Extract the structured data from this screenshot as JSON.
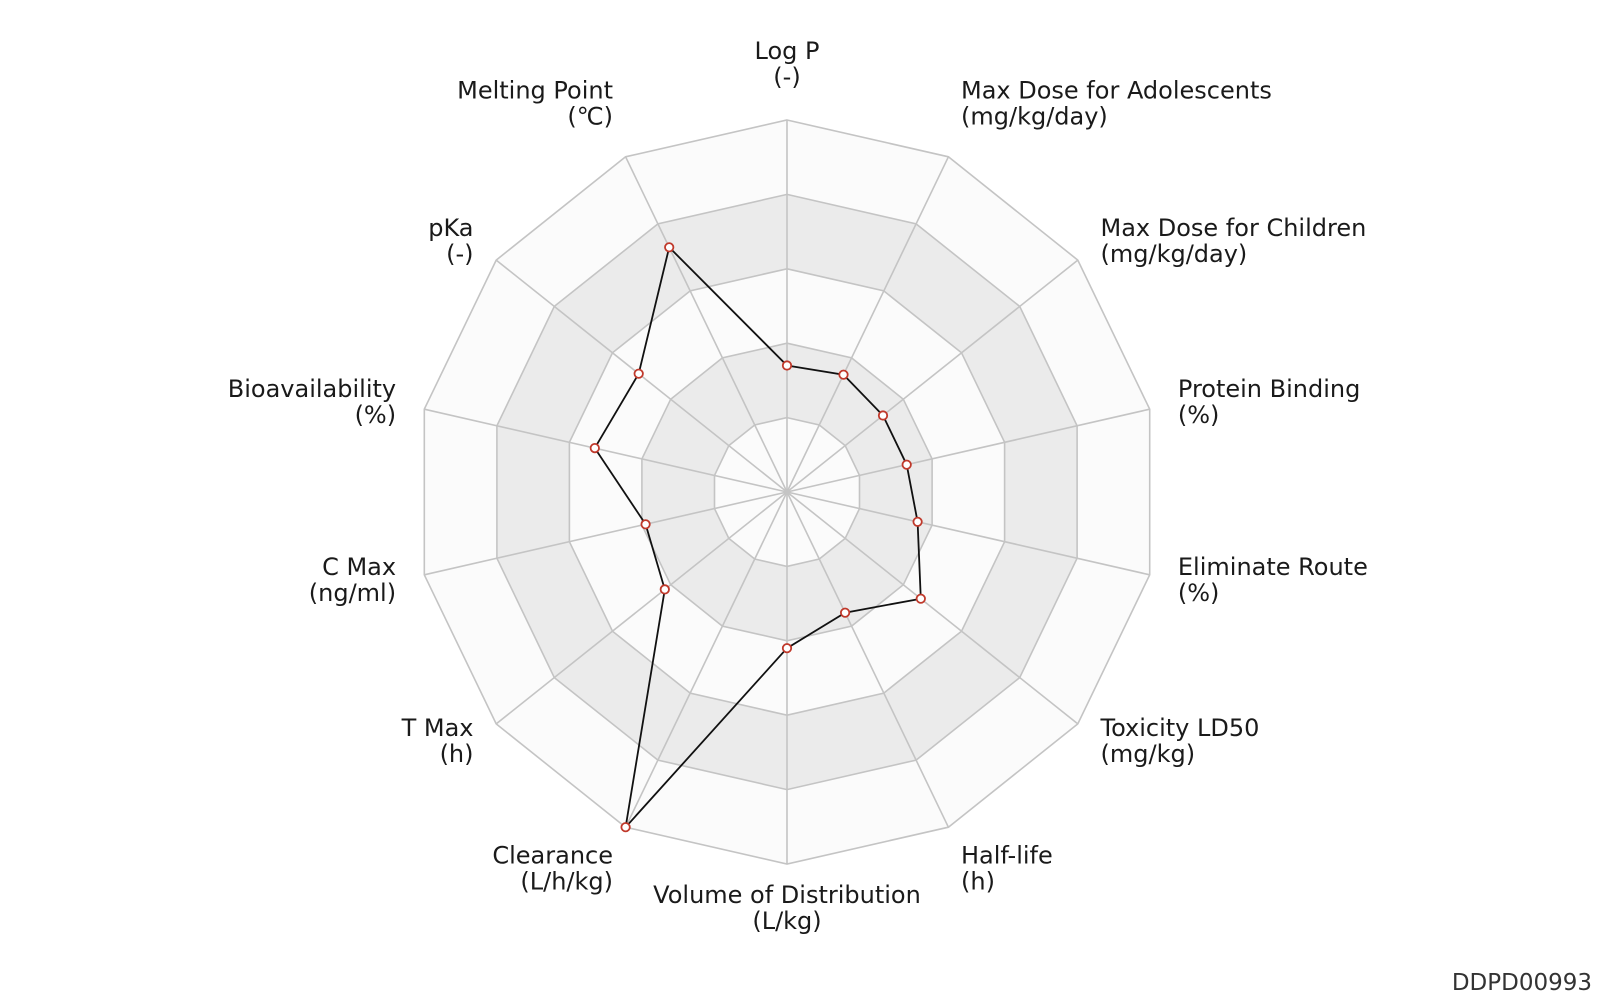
{
  "chart_data": {
    "type": "radar",
    "levels": 5,
    "range": [
      0,
      1
    ],
    "axes": [
      {
        "name": "Log P",
        "unit": "(-)",
        "value": 0.34
      },
      {
        "name": "Max Dose for Adolescents",
        "unit": "(mg/kg/day)",
        "value": 0.35
      },
      {
        "name": "Max Dose for Children",
        "unit": "(mg/kg/day)",
        "value": 0.33
      },
      {
        "name": "Protein Binding",
        "unit": "(%)",
        "value": 0.33
      },
      {
        "name": "Eliminate Route",
        "unit": "(%)",
        "value": 0.36
      },
      {
        "name": "Toxicity LD50",
        "unit": "(mg/kg)",
        "value": 0.46
      },
      {
        "name": "Half-life",
        "unit": "(h)",
        "value": 0.36
      },
      {
        "name": "Volume of Distribution",
        "unit": "(L/kg)",
        "value": 0.42
      },
      {
        "name": "Clearance",
        "unit": "(L/h/kg)",
        "value": 1.0
      },
      {
        "name": "T Max",
        "unit": "(h)",
        "value": 0.42
      },
      {
        "name": "C Max",
        "unit": "(ng/ml)",
        "value": 0.39
      },
      {
        "name": "Bioavailability",
        "unit": "(%)",
        "value": 0.53
      },
      {
        "name": "pKa",
        "unit": "(-)",
        "value": 0.51
      },
      {
        "name": "Melting Point",
        "unit": "(℃)",
        "value": 0.73
      }
    ],
    "colors": {
      "band_light": "#fbfbfb",
      "band_dark": "#ebebeb",
      "grid": "#c4c4c4",
      "line": "#111111",
      "marker_edge": "#c0392b",
      "marker_fill": "#ffffff"
    }
  },
  "watermark": "DDPD00993"
}
